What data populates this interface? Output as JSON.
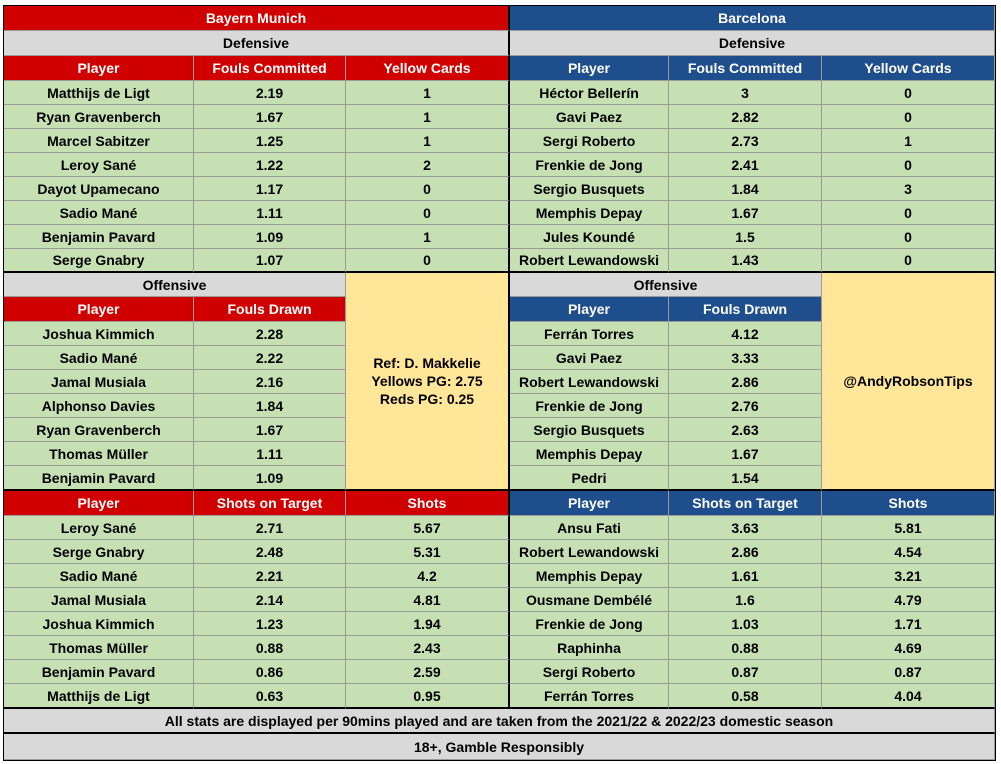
{
  "bayern": {
    "team": "Bayern Munich",
    "defensive_title": "Defensive",
    "defensive_headers": [
      "Player",
      "Fouls Committed",
      "Yellow Cards"
    ],
    "defensive_rows": [
      [
        "Matthijs de Ligt",
        "2.19",
        "1"
      ],
      [
        "Ryan Gravenberch",
        "1.67",
        "1"
      ],
      [
        "Marcel Sabitzer",
        "1.25",
        "1"
      ],
      [
        "Leroy Sané",
        "1.22",
        "2"
      ],
      [
        "Dayot Upamecano",
        "1.17",
        "0"
      ],
      [
        "Sadio Mané",
        "1.11",
        "0"
      ],
      [
        "Benjamin Pavard",
        "1.09",
        "1"
      ],
      [
        "Serge Gnabry",
        "1.07",
        "0"
      ]
    ],
    "offensive_title": "Offensive",
    "offensive_headers": [
      "Player",
      "Fouls Drawn"
    ],
    "offensive_rows": [
      [
        "Joshua Kimmich",
        "2.28"
      ],
      [
        "Sadio Mané",
        "2.22"
      ],
      [
        "Jamal Musiala",
        "2.16"
      ],
      [
        "Alphonso Davies",
        "1.84"
      ],
      [
        "Ryan Gravenberch",
        "1.67"
      ],
      [
        "Thomas Müller",
        "1.11"
      ],
      [
        "Benjamin Pavard",
        "1.09"
      ]
    ],
    "shots_headers": [
      "Player",
      "Shots on Target",
      "Shots"
    ],
    "shots_rows": [
      [
        "Leroy Sané",
        "2.71",
        "5.67"
      ],
      [
        "Serge Gnabry",
        "2.48",
        "5.31"
      ],
      [
        "Sadio Mané",
        "2.21",
        "4.2"
      ],
      [
        "Jamal Musiala",
        "2.14",
        "4.81"
      ],
      [
        "Joshua Kimmich",
        "1.23",
        "1.94"
      ],
      [
        "Thomas Müller",
        "0.88",
        "2.43"
      ],
      [
        "Benjamin Pavard",
        "0.86",
        "2.59"
      ],
      [
        "Matthijs de Ligt",
        "0.63",
        "0.95"
      ]
    ]
  },
  "barcelona": {
    "team": "Barcelona",
    "defensive_title": "Defensive",
    "defensive_headers": [
      "Player",
      "Fouls Committed",
      "Yellow Cards"
    ],
    "defensive_rows": [
      [
        "Héctor Bellerín",
        "3",
        "0"
      ],
      [
        "Gavi Paez",
        "2.82",
        "0"
      ],
      [
        "Sergi Roberto",
        "2.73",
        "1"
      ],
      [
        "Frenkie de Jong",
        "2.41",
        "0"
      ],
      [
        "Sergio Busquets",
        "1.84",
        "3"
      ],
      [
        "Memphis Depay",
        "1.67",
        "0"
      ],
      [
        "Jules Koundé",
        "1.5",
        "0"
      ],
      [
        "Robert Lewandowski",
        "1.43",
        "0"
      ]
    ],
    "offensive_title": "Offensive",
    "offensive_headers": [
      "Player",
      "Fouls Drawn"
    ],
    "offensive_rows": [
      [
        "Ferrán Torres",
        "4.12"
      ],
      [
        "Gavi Paez",
        "3.33"
      ],
      [
        "Robert Lewandowski",
        "2.86"
      ],
      [
        "Frenkie de Jong",
        "2.76"
      ],
      [
        "Sergio Busquets",
        "2.63"
      ],
      [
        "Memphis Depay",
        "1.67"
      ],
      [
        "Pedri",
        "1.54"
      ]
    ],
    "shots_headers": [
      "Player",
      "Shots on Target",
      "Shots"
    ],
    "shots_rows": [
      [
        "Ansu Fati",
        "3.63",
        "5.81"
      ],
      [
        "Robert Lewandowski",
        "2.86",
        "4.54"
      ],
      [
        "Memphis Depay",
        "1.61",
        "3.21"
      ],
      [
        "Ousmane Dembélé",
        "1.6",
        "4.79"
      ],
      [
        "Frenkie de Jong",
        "1.03",
        "1.71"
      ],
      [
        "Raphinha",
        "0.88",
        "4.69"
      ],
      [
        "Sergi Roberto",
        "0.87",
        "0.87"
      ],
      [
        "Ferrán Torres",
        "0.58",
        "4.04"
      ]
    ]
  },
  "referee": {
    "name": "Ref: D. Makkelie",
    "yellows": "Yellows PG: 2.75",
    "reds": "Reds PG: 0.25"
  },
  "handle": "@AndyRobsonTips",
  "footer": {
    "note": "All stats are displayed per 90mins played and are taken from the 2021/22 & 2022/23 domestic season",
    "disclaimer": "18+, Gamble Responsibly"
  },
  "colors": {
    "bayern_red": "#d00000",
    "barca_blue": "#1f4e8c",
    "row_green": "#c6e0b4",
    "section_grey": "#d9d9d9",
    "note_yellow": "#ffe699"
  }
}
